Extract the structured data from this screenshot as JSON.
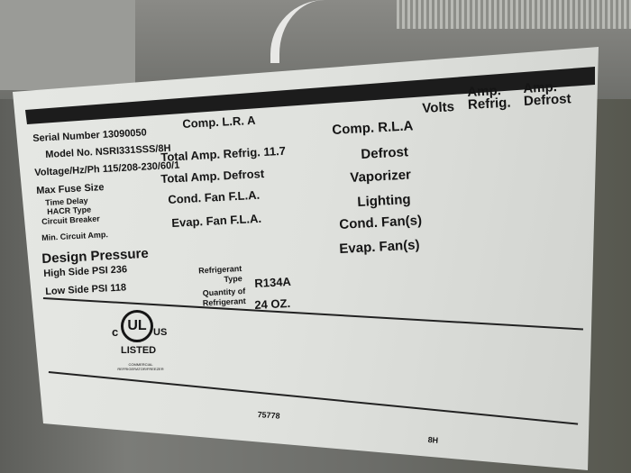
{
  "label": {
    "header": {
      "volts": "Volts",
      "amp_refrig": "Amp. Refrig.",
      "amp_defrost": "Amp. Defrost"
    },
    "serial_number": "Serial Number 13090050",
    "model_no": "Model No. NSRI331SSS/8H",
    "voltage": "Voltage/Hz/Ph  115/208-230/60/1",
    "max_fuse": "Max Fuse Size",
    "time_delay": "Time Delay",
    "hacr": "HACR Type",
    "circuit_breaker": "Circuit Breaker",
    "min_circuit": "Min. Circuit Amp.",
    "design_pressure": "Design Pressure",
    "high_side": "High Side PSI 236",
    "low_side": "Low Side PSI  118",
    "comp_lra": "Comp. L.R. A",
    "total_amp_refrig": "Total Amp. Refrig. 11.7",
    "total_amp_defrost": "Total Amp. Defrost",
    "cond_fan_fla": "Cond. Fan F.L.A.",
    "evap_fan_fla": "Evap. Fan F.L.A.",
    "refrigerant_type_label": "Refrigerant Type",
    "refrigerant_type": "R134A",
    "quantity_label": "Quantity of Refrigerant",
    "quantity": "24 OZ.",
    "comp_rla": "Comp. R.L.A",
    "defrost": "Defrost",
    "vaporizer": "Vaporizer",
    "lighting": "Lighting",
    "cond_fans": "Cond. Fan(s)",
    "evap_fans": "Evap. Fan(s)",
    "ul_logo": {
      "c": "c",
      "mark": "UL",
      "us": "US",
      "listed": "LISTED",
      "fine_print": "COMMERCIAL REFRIGERATOR/FREEZER"
    },
    "code": "75778",
    "suffix": "8H"
  }
}
